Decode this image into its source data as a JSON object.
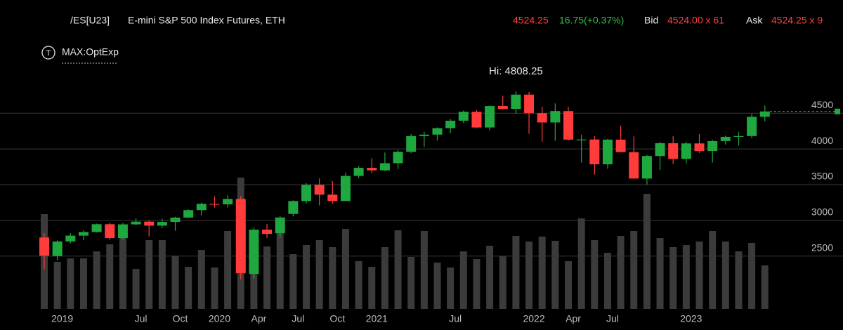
{
  "header": {
    "symbol": "/ES[U23]",
    "name": "E-mini S&P 500 Index Futures, ETH",
    "last": "4524.25",
    "change": "16.75(+0.37%)",
    "bid_label": "Bid",
    "bid": "4524.00 x 61",
    "ask_label": "Ask",
    "ask": "4524.25 x 9",
    "study_icon": "T",
    "study": "MAX:OptExp"
  },
  "chart_data": {
    "type": "candlestick",
    "categories": [
      null,
      "2019",
      null,
      null,
      null,
      null,
      null,
      "Jul",
      null,
      null,
      "Oct",
      null,
      null,
      "2020",
      null,
      null,
      "Apr",
      null,
      null,
      "Jul",
      null,
      null,
      "Oct",
      null,
      null,
      "2021",
      null,
      null,
      null,
      null,
      null,
      "Jul",
      null,
      null,
      null,
      null,
      null,
      "2022",
      null,
      null,
      "Apr",
      null,
      null,
      "Jul",
      null,
      null,
      null,
      null,
      null,
      "2023",
      null,
      null,
      null,
      null,
      null,
      null
    ],
    "open": [
      2760,
      2500,
      2705,
      2786,
      2837,
      2946,
      2752,
      2944,
      2982,
      2926,
      2978,
      3039,
      3143,
      3231,
      3224,
      3300,
      2250,
      2870,
      2820,
      3090,
      3270,
      3497,
      3360,
      3270,
      3622,
      3735,
      3700,
      3800,
      3960,
      4180,
      4200,
      4291,
      4395,
      4520,
      4300,
      4600,
      4560,
      4760,
      4500,
      4370,
      4530,
      4130,
      4132,
      3785,
      4130,
      3955,
      3585,
      3901,
      4080,
      3861,
      4077,
      3970,
      4110,
      4169,
      4180,
      4450
    ],
    "high": [
      2820,
      2720,
      2820,
      2860,
      2954,
      2965,
      2965,
      3029,
      3000,
      3022,
      3050,
      3155,
      3248,
      3337,
      3350,
      3340,
      2900,
      2950,
      3060,
      3280,
      3520,
      3587,
      3549,
      3668,
      3760,
      3870,
      3950,
      3985,
      4210,
      4238,
      4300,
      4420,
      4537,
      4545,
      4608,
      4743,
      4808.25,
      4800,
      4590,
      4637,
      4590,
      4200,
      4177,
      4140,
      4327,
      4175,
      3915,
      4100,
      4180,
      4100,
      4208,
      4128,
      4186,
      4234,
      4493,
      4607
    ],
    "low": [
      2317,
      2443,
      2680,
      2722,
      2830,
      2728,
      2730,
      2935,
      2775,
      2890,
      2855,
      3030,
      3070,
      3180,
      3180,
      2174,
      2180,
      2750,
      2760,
      3055,
      3235,
      3209,
      3233,
      3268,
      3590,
      3660,
      3690,
      3720,
      3940,
      4030,
      4115,
      4220,
      4360,
      4290,
      4260,
      4550,
      4490,
      4212,
      4101,
      4114,
      4117,
      3807,
      3640,
      3723,
      3950,
      3587,
      3502,
      3704,
      3788,
      3795,
      3943,
      3808,
      4062,
      4048,
      4150,
      4385
    ],
    "close": [
      2505,
      2704,
      2786,
      2837,
      2946,
      2752,
      2944,
      2982,
      2926,
      2978,
      3039,
      3143,
      3231,
      3224,
      3300,
      2260,
      2870,
      2810,
      3040,
      3270,
      3497,
      3360,
      3270,
      3622,
      3735,
      3700,
      3800,
      3960,
      4180,
      4200,
      4291,
      4395,
      4520,
      4300,
      4600,
      4560,
      4760,
      4500,
      4370,
      4530,
      4130,
      4132,
      3785,
      4130,
      3955,
      3585,
      3901,
      4080,
      3861,
      4077,
      3970,
      4110,
      4169,
      4180,
      4450,
      4524.25
    ],
    "volume": [
      135,
      67,
      72,
      72,
      82,
      92,
      105,
      57,
      98,
      98,
      76,
      60,
      84,
      59,
      111,
      187,
      60,
      89,
      113,
      78,
      91,
      98,
      88,
      114,
      68,
      60,
      88,
      112,
      74,
      111,
      66,
      59,
      82,
      71,
      90,
      75,
      104,
      96,
      103,
      97,
      68,
      129,
      98,
      80,
      104,
      111,
      164,
      101,
      88,
      91,
      96,
      111,
      96,
      82,
      94,
      62
    ],
    "up_color": "#1fa83f",
    "down_color": "#ff3b3b",
    "volume_color": "#3b3b3b",
    "ylim": [
      1760,
      5200
    ],
    "yticks": [
      2500,
      3000,
      3500,
      4000,
      4500
    ],
    "y2lim": [
      0,
      350
    ],
    "grid": true,
    "annotation": "Hi: 4808.25"
  }
}
